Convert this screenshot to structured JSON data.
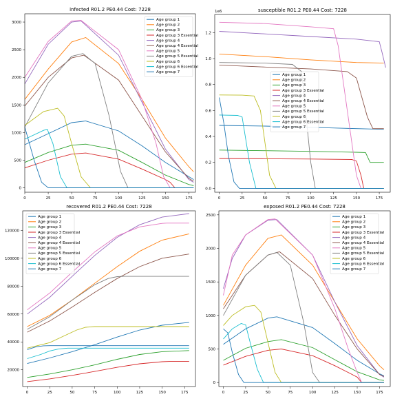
{
  "palette": {
    "Age group 1": "#1f77b4",
    "Age group 2": "#ff7f0e",
    "Age group 3": "#2ca02c",
    "Age group 3 Essential": "#d62728",
    "Age group 4": "#9467bd",
    "Age group 4 Essential": "#8c564b",
    "Age group 5": "#e377c2",
    "Age group 5 Essential": "#7f7f7f",
    "Age group 6": "#bcbd22",
    "Age group 6 Essential": "#17becf",
    "Age group 7": "#1f77b4"
  },
  "chart_data": [
    {
      "type": "line",
      "title": "infected R01.2 PE0.44 Cost: 7228",
      "xlim": [
        0,
        182
      ],
      "ylim": [
        -80,
        3150
      ],
      "xticks": [
        0,
        25,
        50,
        75,
        100,
        125,
        150,
        175
      ],
      "yticks": [
        0,
        500,
        1000,
        1500,
        2000,
        2500,
        3000
      ],
      "ytick_labels": [
        "0",
        "500",
        "1000",
        "1500",
        "2000",
        "2500",
        "3000"
      ],
      "legend_position": "top-right",
      "series": [
        {
          "name": "Age group 1",
          "x": [
            0,
            25,
            50,
            65,
            100,
            125,
            150,
            175,
            180
          ],
          "y": [
            780,
            980,
            1180,
            1210,
            1030,
            760,
            460,
            200,
            150
          ]
        },
        {
          "name": "Age group 2",
          "x": [
            0,
            25,
            50,
            65,
            100,
            125,
            150,
            175,
            180
          ],
          "y": [
            1600,
            2150,
            2640,
            2720,
            2250,
            1600,
            900,
            380,
            290
          ]
        },
        {
          "name": "Age group 3",
          "x": [
            0,
            25,
            50,
            65,
            100,
            125,
            150,
            175,
            180
          ],
          "y": [
            460,
            640,
            770,
            790,
            680,
            460,
            230,
            60,
            40
          ]
        },
        {
          "name": "Age group 3 Essential",
          "x": [
            0,
            25,
            50,
            65,
            100,
            125,
            150,
            155,
            160,
            180
          ],
          "y": [
            360,
            500,
            610,
            630,
            520,
            340,
            150,
            100,
            0,
            0
          ]
        },
        {
          "name": "Age group 4",
          "x": [
            0,
            25,
            50,
            60,
            100,
            125,
            150,
            175,
            180
          ],
          "y": [
            1880,
            2600,
            3000,
            3020,
            2400,
            1550,
            700,
            150,
            100
          ]
        },
        {
          "name": "Age group 4 Essential",
          "x": [
            0,
            25,
            50,
            63,
            100,
            125,
            150,
            175,
            180
          ],
          "y": [
            1480,
            2000,
            2350,
            2400,
            1950,
            1300,
            650,
            170,
            120
          ]
        },
        {
          "name": "Age group 5",
          "x": [
            0,
            25,
            50,
            60,
            100,
            125,
            140,
            148,
            155,
            180
          ],
          "y": [
            2000,
            2650,
            3020,
            3030,
            2500,
            1600,
            800,
            200,
            0,
            0
          ]
        },
        {
          "name": "Age group 5 Essential",
          "x": [
            0,
            25,
            50,
            62,
            75,
            90,
            102,
            110,
            180
          ],
          "y": [
            1100,
            1900,
            2380,
            2430,
            2250,
            1300,
            300,
            0,
            0
          ]
        },
        {
          "name": "Age group 6",
          "x": [
            0,
            20,
            35,
            42,
            50,
            60,
            70,
            180
          ],
          "y": [
            1130,
            1380,
            1440,
            1300,
            800,
            200,
            0,
            0
          ]
        },
        {
          "name": "Age group 6 Essential",
          "x": [
            0,
            20,
            24,
            30,
            38,
            45,
            180
          ],
          "y": [
            880,
            1040,
            1060,
            800,
            200,
            0,
            0
          ]
        },
        {
          "name": "Age group 7",
          "x": [
            0,
            10,
            18,
            25,
            180
          ],
          "y": [
            1100,
            500,
            100,
            0,
            0
          ]
        }
      ]
    },
    {
      "type": "line",
      "title": "susceptible R01.2 PE0.44 Cost: 7228",
      "xlim": [
        -5,
        187
      ],
      "ylim": [
        -0.03,
        1.34
      ],
      "xticks": [
        0,
        25,
        50,
        75,
        100,
        125,
        150,
        175
      ],
      "yticks": [
        0.0,
        0.2,
        0.4,
        0.6,
        0.8,
        1.0,
        1.2
      ],
      "ytick_labels": [
        "0.0",
        "0.2",
        "0.4",
        "0.6",
        "0.8",
        "1.0",
        "1.2"
      ],
      "offset_label": "1e6",
      "legend_position": "center",
      "series": [
        {
          "name": "Age group 1",
          "x": [
            0,
            50,
            100,
            150,
            180
          ],
          "y": [
            0.485,
            0.48,
            0.47,
            0.46,
            0.455
          ]
        },
        {
          "name": "Age group 2",
          "x": [
            0,
            50,
            100,
            150,
            180
          ],
          "y": [
            1.035,
            1.015,
            0.99,
            0.97,
            0.965
          ]
        },
        {
          "name": "Age group 3",
          "x": [
            0,
            50,
            100,
            150,
            160,
            165,
            180
          ],
          "y": [
            0.295,
            0.29,
            0.285,
            0.278,
            0.276,
            0.2,
            0.2
          ]
        },
        {
          "name": "Age group 3 Essential",
          "x": [
            0,
            50,
            100,
            145,
            150,
            155,
            158,
            180
          ],
          "y": [
            0.23,
            0.228,
            0.226,
            0.222,
            0.21,
            0.1,
            0.0,
            0.0
          ]
        },
        {
          "name": "Age group 4",
          "x": [
            0,
            50,
            100,
            150,
            175,
            178,
            182
          ],
          "y": [
            1.21,
            1.19,
            1.17,
            1.15,
            1.13,
            1.05,
            0.93
          ]
        },
        {
          "name": "Age group 4 Essential",
          "x": [
            0,
            50,
            100,
            140,
            150,
            162,
            168,
            180
          ],
          "y": [
            0.95,
            0.935,
            0.92,
            0.9,
            0.85,
            0.55,
            0.46,
            0.46
          ]
        },
        {
          "name": "Age group 5",
          "x": [
            0,
            50,
            100,
            125,
            130,
            140,
            150,
            155,
            180
          ],
          "y": [
            1.28,
            1.27,
            1.245,
            1.23,
            1.1,
            0.6,
            0.1,
            0.0,
            0.0
          ]
        },
        {
          "name": "Age group 5 Essential",
          "x": [
            0,
            50,
            80,
            90,
            100,
            105,
            180
          ],
          "y": [
            0.97,
            0.965,
            0.955,
            0.9,
            0.2,
            0.0,
            0.0
          ]
        },
        {
          "name": "Age group 6",
          "x": [
            0,
            25,
            38,
            45,
            55,
            62,
            180
          ],
          "y": [
            0.72,
            0.718,
            0.712,
            0.6,
            0.1,
            0.0,
            0.0
          ]
        },
        {
          "name": "Age group 6 Essential",
          "x": [
            0,
            20,
            25,
            33,
            40,
            180
          ],
          "y": [
            0.565,
            0.562,
            0.55,
            0.2,
            0.0,
            0.0
          ]
        },
        {
          "name": "Age group 7",
          "x": [
            0,
            5,
            10,
            16,
            22,
            180
          ],
          "y": [
            0.7,
            0.5,
            0.25,
            0.05,
            0.0,
            0.0
          ]
        }
      ]
    },
    {
      "type": "line",
      "title": "recovered R01.2 PE0.44 Cost: 7228",
      "xlim": [
        -5,
        187
      ],
      "ylim": [
        8000,
        134000
      ],
      "xticks": [
        0,
        25,
        50,
        75,
        100,
        125,
        150,
        175
      ],
      "yticks": [
        20000,
        40000,
        60000,
        80000,
        100000,
        120000
      ],
      "ytick_labels": [
        "20000",
        "40000",
        "60000",
        "80000",
        "100000",
        "120000"
      ],
      "legend_position": "top-left",
      "series": [
        {
          "name": "Age group 1",
          "x": [
            0,
            25,
            50,
            75,
            100,
            125,
            150,
            180
          ],
          "y": [
            24500,
            28500,
            33000,
            38000,
            43500,
            48500,
            52000,
            54000
          ]
        },
        {
          "name": "Age group 2",
          "x": [
            0,
            25,
            50,
            75,
            100,
            125,
            150,
            180
          ],
          "y": [
            51000,
            59000,
            70000,
            82000,
            94000,
            105000,
            113000,
            117500
          ]
        },
        {
          "name": "Age group 3",
          "x": [
            0,
            25,
            50,
            75,
            100,
            125,
            150,
            180
          ],
          "y": [
            14500,
            17000,
            20000,
            23500,
            27500,
            31000,
            33000,
            33800
          ]
        },
        {
          "name": "Age group 3 Essential",
          "x": [
            0,
            25,
            50,
            75,
            100,
            125,
            150,
            158,
            180
          ],
          "y": [
            11500,
            13500,
            16000,
            18800,
            21800,
            24300,
            25800,
            26000,
            26000
          ]
        },
        {
          "name": "Age group 4",
          "x": [
            0,
            25,
            50,
            75,
            100,
            125,
            150,
            180
          ],
          "y": [
            60000,
            72000,
            87000,
            102000,
            115000,
            124000,
            129500,
            132000
          ]
        },
        {
          "name": "Age group 4 Essential",
          "x": [
            0,
            25,
            50,
            75,
            100,
            125,
            150,
            180
          ],
          "y": [
            47000,
            55000,
            65000,
            75500,
            85500,
            94000,
            100000,
            103000
          ]
        },
        {
          "name": "Age group 5",
          "x": [
            0,
            25,
            50,
            75,
            100,
            125,
            150,
            155,
            180
          ],
          "y": [
            63000,
            75000,
            90000,
            104500,
            116000,
            122500,
            125000,
            125200,
            125200
          ]
        },
        {
          "name": "Age group 5 Essential",
          "x": [
            0,
            25,
            50,
            75,
            90,
            100,
            108,
            180
          ],
          "y": [
            49000,
            58000,
            70000,
            81000,
            85500,
            86800,
            87000,
            87000
          ]
        },
        {
          "name": "Age group 6",
          "x": [
            0,
            25,
            40,
            55,
            65,
            75,
            180
          ],
          "y": [
            35500,
            39500,
            44000,
            48500,
            50500,
            51000,
            51000
          ]
        },
        {
          "name": "Age group 6 Essential",
          "x": [
            0,
            15,
            25,
            35,
            45,
            180
          ],
          "y": [
            28000,
            31000,
            33500,
            35000,
            35500,
            35500
          ]
        },
        {
          "name": "Age group 7",
          "x": [
            0,
            10,
            18,
            25,
            180
          ],
          "y": [
            34500,
            36500,
            37200,
            37300,
            37300
          ]
        }
      ]
    },
    {
      "type": "line",
      "title": "exposed R01.2 PE0.44 Cost: 7228",
      "xlim": [
        -5,
        187
      ],
      "ylim": [
        -60,
        2560
      ],
      "xticks": [
        0,
        25,
        50,
        75,
        100,
        125,
        150,
        175
      ],
      "yticks": [
        0,
        500,
        1000,
        1500,
        2000,
        2500
      ],
      "ytick_labels": [
        "0",
        "500",
        "1000",
        "1500",
        "2000",
        "2500"
      ],
      "legend_position": "top-right",
      "series": [
        {
          "name": "Age group 1",
          "x": [
            0,
            25,
            50,
            60,
            100,
            125,
            150,
            175,
            180
          ],
          "y": [
            570,
            800,
            960,
            980,
            820,
            580,
            330,
            130,
            100
          ]
        },
        {
          "name": "Age group 2",
          "x": [
            0,
            25,
            50,
            65,
            100,
            125,
            150,
            175,
            180
          ],
          "y": [
            1150,
            1750,
            2150,
            2200,
            1750,
            1200,
            650,
            250,
            190
          ]
        },
        {
          "name": "Age group 3",
          "x": [
            0,
            25,
            50,
            65,
            100,
            125,
            150,
            175,
            180
          ],
          "y": [
            330,
            510,
            610,
            640,
            520,
            340,
            160,
            40,
            30
          ]
        },
        {
          "name": "Age group 3 Essential",
          "x": [
            0,
            25,
            50,
            65,
            100,
            125,
            140,
            150,
            155,
            180
          ],
          "y": [
            260,
            390,
            480,
            500,
            400,
            250,
            150,
            80,
            0,
            0
          ]
        },
        {
          "name": "Age group 4",
          "x": [
            0,
            10,
            25,
            50,
            60,
            100,
            125,
            150,
            175,
            180
          ],
          "y": [
            1400,
            1850,
            2200,
            2420,
            2430,
            1900,
            1200,
            550,
            120,
            80
          ]
        },
        {
          "name": "Age group 4 Essential",
          "x": [
            0,
            25,
            50,
            63,
            100,
            125,
            150,
            175,
            180
          ],
          "y": [
            1100,
            1600,
            1900,
            1950,
            1550,
            1000,
            500,
            120,
            90
          ]
        },
        {
          "name": "Age group 5",
          "x": [
            0,
            10,
            25,
            50,
            58,
            100,
            125,
            140,
            150,
            155,
            180
          ],
          "y": [
            1300,
            1900,
            2200,
            2430,
            2440,
            1900,
            1100,
            500,
            150,
            0,
            0
          ]
        },
        {
          "name": "Age group 5 Essential",
          "x": [
            0,
            25,
            50,
            60,
            75,
            90,
            100,
            108,
            180
          ],
          "y": [
            1000,
            1600,
            1900,
            1940,
            1750,
            900,
            150,
            0,
            0
          ]
        },
        {
          "name": "Age group 6",
          "x": [
            0,
            10,
            25,
            35,
            42,
            50,
            58,
            65,
            180
          ],
          "y": [
            850,
            1000,
            1130,
            1150,
            1050,
            600,
            150,
            0,
            0
          ]
        },
        {
          "name": "Age group 6 Essential",
          "x": [
            0,
            10,
            20,
            25,
            30,
            38,
            45,
            180
          ],
          "y": [
            650,
            800,
            880,
            860,
            600,
            200,
            0,
            0
          ]
        },
        {
          "name": "Age group 7",
          "x": [
            0,
            5,
            10,
            17,
            23,
            180
          ],
          "y": [
            800,
            740,
            450,
            120,
            0,
            0
          ]
        }
      ]
    }
  ]
}
